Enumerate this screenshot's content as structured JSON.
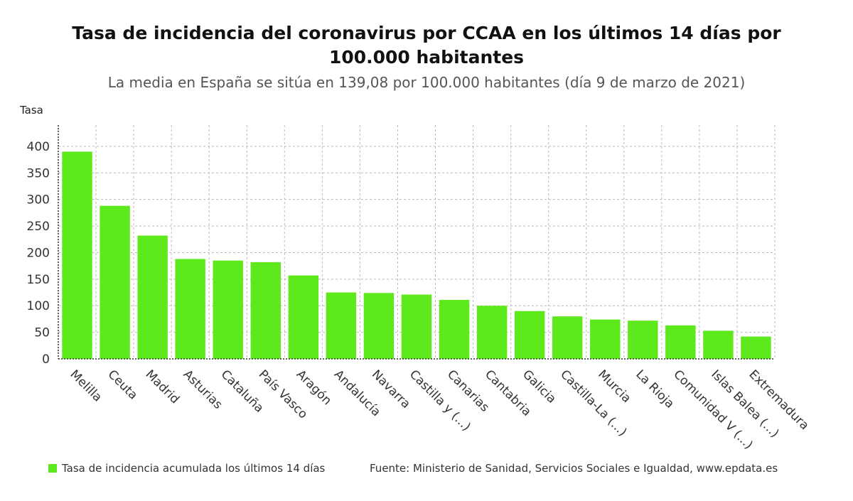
{
  "title": "Tasa de incidencia del coronavirus por CCAA en los últimos 14 días por 100.000 habitantes",
  "subtitle": "La media en España se sitúa en 139,08 por 100.000 habitantes (día 9 de marzo de 2021)",
  "legend_label": "Tasa de incidencia acumulada los últimos 14 días",
  "source": "Fuente: Ministerio de Sanidad, Servicios Sociales e Igualdad, www.epdata.es",
  "colors": {
    "bar": "#5ee91c",
    "grid": "#bbbbbb",
    "axis": "#333333"
  },
  "chart_data": {
    "type": "bar",
    "ylabel": "Tasa",
    "ylim": [
      0,
      440
    ],
    "yticks": [
      0,
      50,
      100,
      150,
      200,
      250,
      300,
      350,
      400
    ],
    "grid": true,
    "categories": [
      "Melilla",
      "Ceuta",
      "Madrid",
      "Asturias",
      "Cataluña",
      "País Vasco",
      "Aragón",
      "Andalucía",
      "Navarra",
      "Castilla y (...)",
      "Canarias",
      "Cantabria",
      "Galicia",
      "Castilla-La (...)",
      "Murcia",
      "La Rioja",
      "Comunidad V (...)",
      "Islas Balea (...)",
      "Extremadura"
    ],
    "series": [
      {
        "name": "Tasa de incidencia acumulada los últimos 14 días",
        "values": [
          390,
          288,
          232,
          188,
          185,
          182,
          157,
          125,
          124,
          121,
          111,
          100,
          90,
          80,
          74,
          72,
          63,
          53,
          42
        ]
      }
    ]
  }
}
